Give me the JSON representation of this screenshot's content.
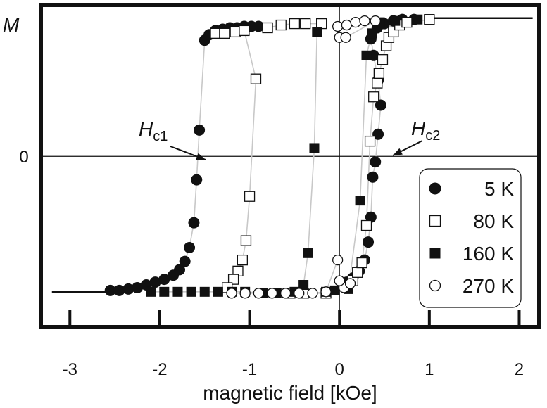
{
  "chart_data": {
    "type": "scatter",
    "title": "",
    "xlabel": "magnetic field  [kOe]",
    "ylabel": "M",
    "xlim": [
      -3.3,
      2.2
    ],
    "ylim": [
      -1.22,
      1.08
    ],
    "x_ticks": [
      -3,
      -2,
      -1,
      0,
      1,
      2
    ],
    "x_tick_labels": [
      "-3",
      "-2",
      "-1",
      "0",
      "1",
      "2"
    ],
    "y_ticks": [
      0
    ],
    "y_tick_labels": [
      "0"
    ],
    "legend_position": "lower-right",
    "annotations": [
      {
        "main": "H",
        "sub": "c1",
        "x": -1.57,
        "y": 0.0
      },
      {
        "main": "H",
        "sub": "c2",
        "x": 0.43,
        "y": 0.1
      }
    ],
    "saturation_lines": [
      {
        "x": [
          -3.2,
          -2.5
        ],
        "y": [
          -0.98,
          -0.98
        ]
      },
      {
        "x": [
          1.0,
          2.15
        ],
        "y": [
          1.0,
          1.0
        ]
      }
    ],
    "series": [
      {
        "name": "5 K",
        "marker": "filled-circle",
        "points": [
          [
            -2.55,
            -0.97
          ],
          [
            -2.45,
            -0.97
          ],
          [
            -2.35,
            -0.96
          ],
          [
            -2.25,
            -0.95
          ],
          [
            -2.15,
            -0.93
          ],
          [
            -2.05,
            -0.91
          ],
          [
            -1.95,
            -0.89
          ],
          [
            -1.85,
            -0.86
          ],
          [
            -1.78,
            -0.82
          ],
          [
            -1.72,
            -0.76
          ],
          [
            -1.67,
            -0.66
          ],
          [
            -1.62,
            -0.48
          ],
          [
            -1.59,
            -0.17
          ],
          [
            -1.56,
            0.19
          ],
          [
            -1.5,
            0.84
          ],
          [
            -1.45,
            0.88
          ],
          [
            -1.38,
            0.91
          ],
          [
            -1.3,
            0.92
          ],
          [
            -1.22,
            0.93
          ],
          [
            -1.14,
            0.93
          ],
          [
            -1.06,
            0.94
          ],
          [
            -0.98,
            0.94
          ],
          [
            -0.9,
            0.94
          ],
          [
            0.08,
            -0.91
          ],
          [
            0.15,
            -0.88
          ],
          [
            0.22,
            -0.83
          ],
          [
            0.28,
            -0.75
          ],
          [
            0.32,
            -0.62
          ],
          [
            0.35,
            -0.44
          ],
          [
            0.37,
            -0.15
          ],
          [
            0.4,
            -0.04
          ],
          [
            0.43,
            0.16
          ],
          [
            0.46,
            0.37
          ],
          [
            0.43,
            0.55
          ],
          [
            0.38,
            0.73
          ],
          [
            0.35,
            0.85
          ],
          [
            0.42,
            0.93
          ],
          [
            0.5,
            0.96
          ],
          [
            0.6,
            0.98
          ],
          [
            0.7,
            0.99
          ],
          [
            0.83,
            0.99
          ]
        ]
      },
      {
        "name": "80 K",
        "marker": "open-square",
        "points": [
          [
            -1.38,
            0.89
          ],
          [
            -1.28,
            0.89
          ],
          [
            -1.16,
            0.9
          ],
          [
            -1.06,
            0.91
          ],
          [
            -0.93,
            0.56
          ],
          [
            -1.0,
            -0.29
          ],
          [
            -1.04,
            -0.61
          ],
          [
            -1.08,
            -0.75
          ],
          [
            -1.13,
            -0.83
          ],
          [
            -1.18,
            -0.89
          ],
          [
            -1.25,
            -0.95
          ],
          [
            -0.8,
            0.93
          ],
          [
            -0.65,
            0.95
          ],
          [
            -0.5,
            0.96
          ],
          [
            -0.38,
            0.96
          ],
          [
            -0.2,
            0.96
          ],
          [
            0.15,
            -0.9
          ],
          [
            0.2,
            -0.84
          ],
          [
            0.25,
            -0.77
          ],
          [
            0.3,
            -0.5
          ],
          [
            0.34,
            0.11
          ],
          [
            0.38,
            0.43
          ],
          [
            0.42,
            0.53
          ],
          [
            0.44,
            0.6
          ],
          [
            0.48,
            0.7
          ],
          [
            0.52,
            0.8
          ],
          [
            0.55,
            0.86
          ],
          [
            0.6,
            0.9
          ],
          [
            0.67,
            0.95
          ],
          [
            0.75,
            0.97
          ],
          [
            1.0,
            0.99
          ],
          [
            -0.55,
            -0.99
          ],
          [
            -0.4,
            -0.99
          ],
          [
            -0.15,
            -0.99
          ]
        ]
      },
      {
        "name": "160 K",
        "marker": "filled-square",
        "points": [
          [
            -2.1,
            -0.98
          ],
          [
            -1.95,
            -0.98
          ],
          [
            -1.8,
            -0.98
          ],
          [
            -1.65,
            -0.98
          ],
          [
            -1.5,
            -0.98
          ],
          [
            -1.35,
            -0.98
          ],
          [
            -1.2,
            -0.98
          ],
          [
            -1.05,
            -0.98
          ],
          [
            -0.85,
            -0.99
          ],
          [
            -0.7,
            -0.99
          ],
          [
            -0.5,
            -0.98
          ],
          [
            -0.4,
            -0.93
          ],
          [
            -0.35,
            -0.7
          ],
          [
            -0.28,
            0.06
          ],
          [
            -0.25,
            0.9
          ],
          [
            -0.15,
            -0.98
          ],
          [
            -0.05,
            -0.97
          ],
          [
            0.1,
            -0.96
          ],
          [
            0.23,
            -0.32
          ],
          [
            0.3,
            0.73
          ],
          [
            0.36,
            0.89
          ],
          [
            0.45,
            0.97
          ],
          [
            0.62,
            0.98
          ],
          [
            0.87,
            0.99
          ]
        ]
      },
      {
        "name": "270 K",
        "marker": "open-circle",
        "points": [
          [
            -1.2,
            -0.99
          ],
          [
            -1.05,
            -0.99
          ],
          [
            -0.9,
            -0.99
          ],
          [
            -0.75,
            -0.99
          ],
          [
            -0.6,
            -0.99
          ],
          [
            -0.45,
            -0.99
          ],
          [
            -0.3,
            -0.99
          ],
          [
            -0.15,
            -0.98
          ],
          [
            -0.02,
            -0.75
          ],
          [
            0.0,
            0.86
          ],
          [
            -0.02,
            0.94
          ],
          [
            0.08,
            0.95
          ],
          [
            0.18,
            0.97
          ],
          [
            0.28,
            0.98
          ],
          [
            0.4,
            0.98
          ],
          [
            0.07,
            0.86
          ],
          [
            0.05,
            -0.95
          ],
          [
            0.0,
            -0.9
          ],
          [
            0.12,
            -0.92
          ]
        ]
      }
    ]
  }
}
